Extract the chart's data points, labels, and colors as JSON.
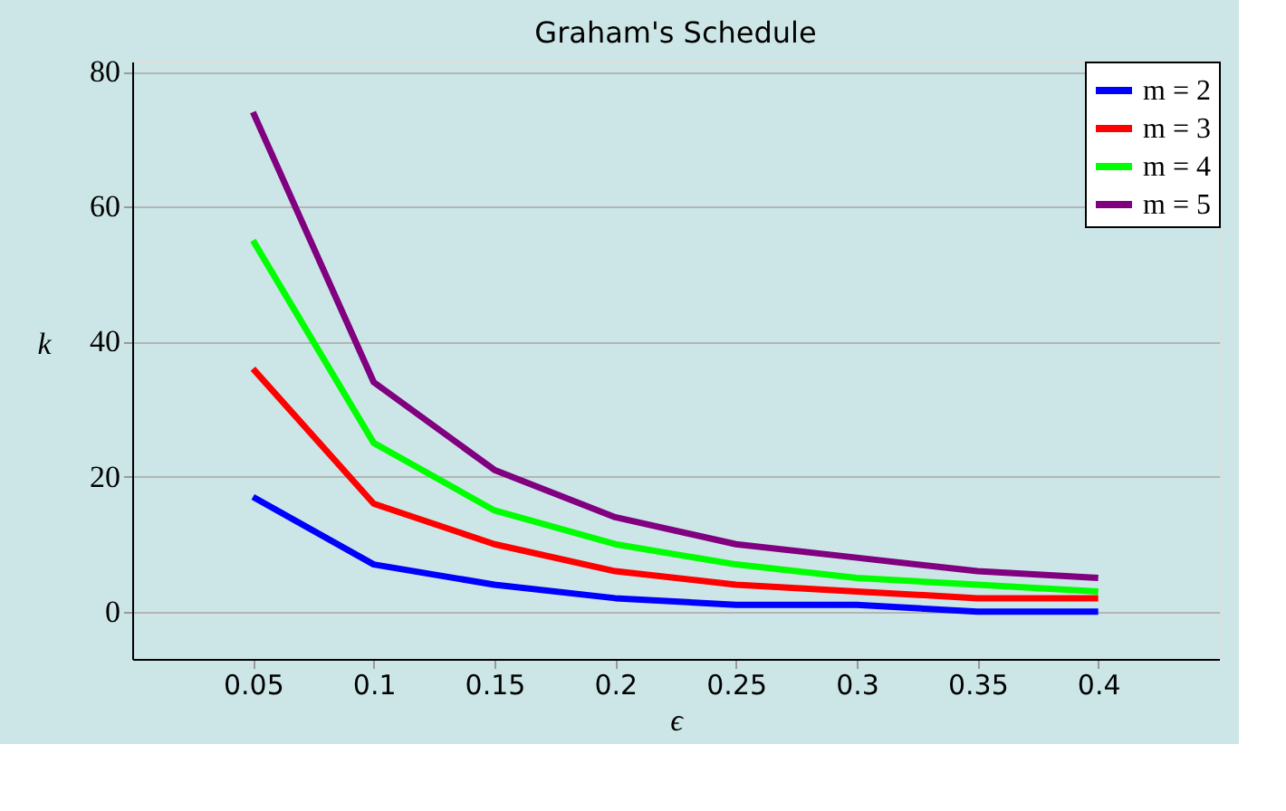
{
  "chart_data": {
    "type": "line",
    "title": "Graham's Schedule",
    "xlabel": "ϵ",
    "ylabel": "k",
    "x": [
      0.05,
      0.1,
      0.15,
      0.2,
      0.25,
      0.3,
      0.35,
      0.4
    ],
    "series": [
      {
        "name": "m = 2",
        "color": "#0000ff",
        "values": [
          17,
          7,
          4,
          2,
          1,
          1,
          0,
          0
        ]
      },
      {
        "name": "m = 3",
        "color": "#ff0000",
        "values": [
          36,
          16,
          10,
          6,
          4,
          3,
          2,
          2
        ]
      },
      {
        "name": "m = 4",
        "color": "#00ff00",
        "values": [
          55,
          25,
          15,
          10,
          7,
          5,
          4,
          3
        ]
      },
      {
        "name": "m = 5",
        "color": "#800080",
        "values": [
          74,
          34,
          21,
          14,
          10,
          8,
          6,
          5
        ]
      }
    ],
    "xlim": [
      0.0,
      0.45
    ],
    "xticks": [
      0.05,
      0.1,
      0.15,
      0.2,
      0.25,
      0.3,
      0.35,
      0.4
    ],
    "ylim": [
      -7,
      81.5
    ],
    "yticks": [
      0,
      20,
      40,
      60,
      80
    ],
    "grid": "y",
    "legend": "top right",
    "marker": "none",
    "line_style": "solid"
  }
}
